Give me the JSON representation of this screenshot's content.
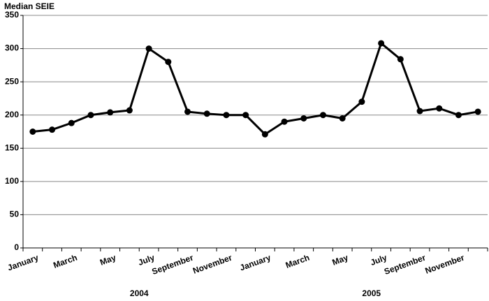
{
  "chart_data": {
    "type": "line",
    "y_label": "Median SEIE",
    "categories": [
      "January",
      null,
      "March",
      null,
      "May",
      null,
      "July",
      null,
      "September",
      null,
      "November",
      null,
      "January",
      null,
      "March",
      null,
      "May",
      null,
      "July",
      null,
      "September",
      null,
      "November",
      null
    ],
    "groups": [
      "2004",
      "2005"
    ],
    "series": [
      {
        "name": "Median SEIE",
        "color": "#000000",
        "values": [
          175,
          178,
          188,
          200,
          204,
          207,
          300,
          280,
          205,
          202,
          200,
          200,
          171,
          190,
          195,
          200,
          195,
          220,
          308,
          284,
          206,
          210,
          200,
          205
        ]
      }
    ],
    "ylim": [
      0,
      350
    ],
    "yticks": [
      0,
      50,
      100,
      150,
      200,
      250,
      300,
      350
    ],
    "grid": true
  }
}
